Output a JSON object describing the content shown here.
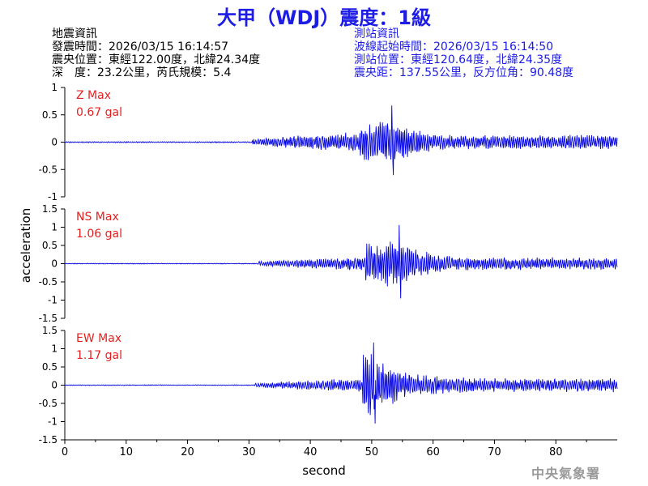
{
  "title": "大甲（WDJ）震度：1級",
  "event_info": {
    "heading": "地震資訊",
    "origin_time": "發震時間：2026/03/15 16:14:57",
    "epicenter": "震央位置：東經122.00度，北緯24.34度",
    "depth_magnitude": "深　度：23.2公里，芮氏規模：5.4"
  },
  "station_info": {
    "heading": "測站資訊",
    "wave_start": "波線起始時間：2026/03/15 16:14:50",
    "station_location": "測站位置：東經120.64度，北緯24.35度",
    "distance_azimuth": "震央距：137.55公里，反方位角：90.48度"
  },
  "watermark": "中央氣象署",
  "colors": {
    "title": "#1c1ce6",
    "trace": "#0000e6",
    "label": "#e62020",
    "axis": "#000000"
  },
  "chart_data": {
    "type": "line",
    "xlabel": "second",
    "ylabel": "acceleration",
    "xlim": [
      0,
      90
    ],
    "x_ticks": [
      "0",
      "10",
      "20",
      "30",
      "40",
      "50",
      "60",
      "70",
      "80"
    ],
    "grid": false,
    "panels": [
      {
        "component": "Z",
        "label": "Z Max",
        "max_value": "0.67 gal",
        "ylim": [
          -1,
          1
        ],
        "y_ticks": [
          "1",
          "0.5",
          "0",
          "-0.5",
          "-1"
        ],
        "waveform": {
          "noise_before_30s": 0.01,
          "p_arrival_s": 30.5,
          "s_arrival_s": 48,
          "peak_time_s": 53.3,
          "peak_value": 0.67,
          "coda_level": 0.15
        }
      },
      {
        "component": "NS",
        "label": "NS Max",
        "max_value": "1.06 gal",
        "ylim": [
          -1.5,
          1.5
        ],
        "y_ticks": [
          "1.5",
          "1",
          "0.5",
          "0",
          "-0.5",
          "-1",
          "-1.5"
        ],
        "waveform": {
          "noise_before_30s": 0.01,
          "p_arrival_s": 31.5,
          "s_arrival_s": 49,
          "peak_time_s": 54.5,
          "peak_value": 1.06,
          "coda_level": 0.2
        }
      },
      {
        "component": "EW",
        "label": "EW Max",
        "max_value": "1.17 gal",
        "ylim": [
          -1.5,
          1.5
        ],
        "y_ticks": [
          "1.5",
          "1",
          "0.5",
          "0",
          "-0.5",
          "-1",
          "-1.5"
        ],
        "waveform": {
          "noise_before_30s": 0.01,
          "p_arrival_s": 31,
          "s_arrival_s": 48.5,
          "peak_time_s": 50.3,
          "peak_value": 1.17,
          "coda_level": 0.22
        }
      }
    ]
  }
}
